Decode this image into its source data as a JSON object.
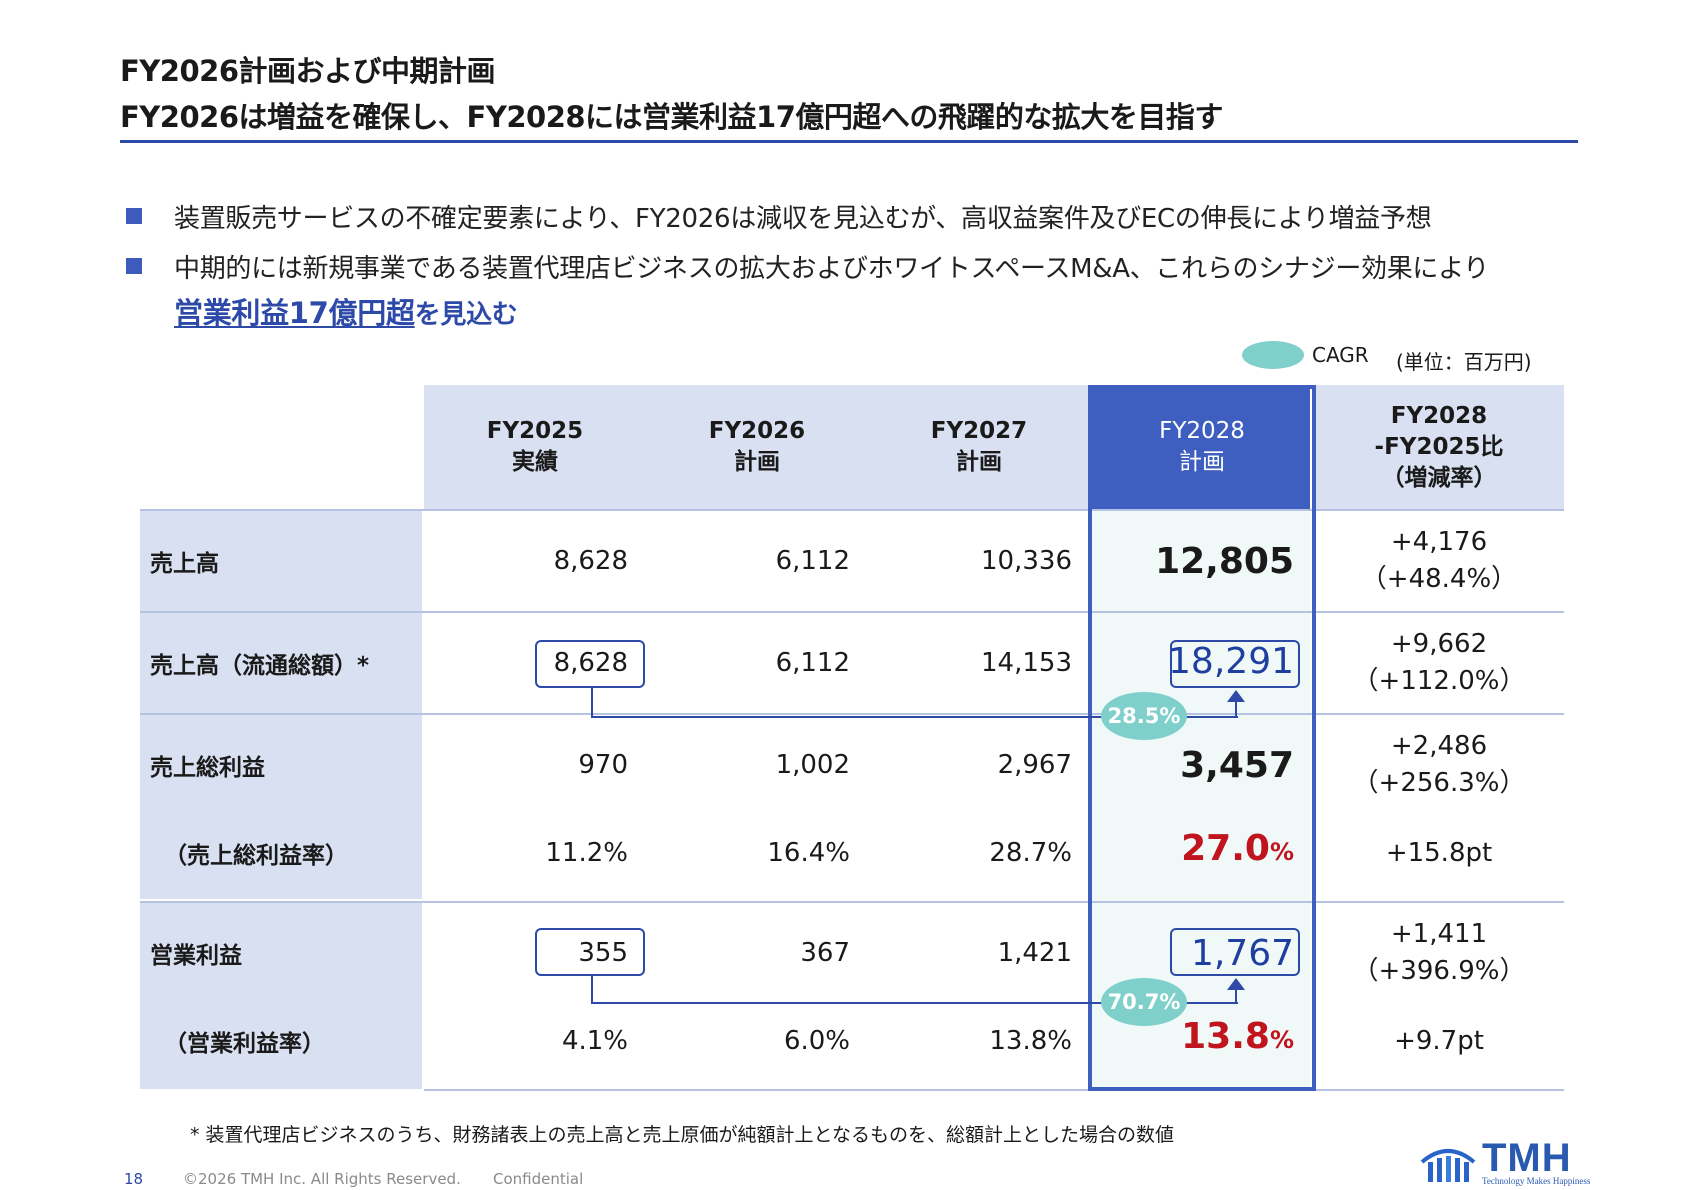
{
  "slide": {
    "title_line1": "FY2026計画および中期計画",
    "title_line2": "FY2026は増益を確保し、FY2028には営業利益17億円超への飛躍的な拡大を目指す"
  },
  "bullets": [
    {
      "text": "装置販売サービスの不確定要素により、FY2026は減収を見込むが、高収益案件及びECの伸長により増益予想"
    },
    {
      "text": "中期的には新規事業である装置代理店ビジネスの拡大およびホワイトスペースM&A、これらのシナジー効果により",
      "highlight": "営業利益17億円超",
      "tail": "を見込む"
    }
  ],
  "legend": {
    "cagr": "CAGR",
    "unit": "(単位：百万円)"
  },
  "table": {
    "headers": [
      {
        "line1": "FY2025",
        "line2": "実績"
      },
      {
        "line1": "FY2026",
        "line2": "計画"
      },
      {
        "line1": "FY2027",
        "line2": "計画"
      },
      {
        "line1": "FY2028",
        "line2": "計画"
      },
      {
        "line1": "FY2028",
        "line2": "-FY2025比",
        "line3": "（増減率）"
      }
    ],
    "rows": [
      {
        "label": "売上高",
        "values": [
          "8,628",
          "6,112",
          "10,336",
          "12,805"
        ],
        "delta1": "+4,176",
        "delta2": "（+48.4%）"
      },
      {
        "label": "売上高（流通総額）*",
        "values": [
          "8,628",
          "6,112",
          "14,153",
          "18,291"
        ],
        "delta1": "+9,662",
        "delta2": "（+112.0%）"
      },
      {
        "label": "売上総利益",
        "values": [
          "970",
          "1,002",
          "2,967",
          "3,457"
        ],
        "delta1": "+2,486",
        "delta2": "（+256.3%）"
      },
      {
        "label": "（売上総利益率）",
        "values": [
          "11.2%",
          "16.4%",
          "28.7%"
        ],
        "fy2028_num": "27.0",
        "fy2028_pct": "%",
        "delta1": "+15.8pt"
      },
      {
        "label": "営業利益",
        "values": [
          "355",
          "367",
          "1,421",
          "1,767"
        ],
        "delta1": "+1,411",
        "delta2": "（+396.9%）"
      },
      {
        "label": "（営業利益率）",
        "values": [
          "4.1%",
          "6.0%",
          "13.8%"
        ],
        "fy2028_num": "13.8",
        "fy2028_pct": "%",
        "delta1": "+9.7pt"
      }
    ],
    "cagr_values": [
      "28.5%",
      "70.7%"
    ]
  },
  "footnote": "* 装置代理店ビジネスのうち、財務諸表上の売上高と売上原価が純額計上となるものを、総額計上とした場合の数値",
  "footer": {
    "page": "18",
    "copyright": "©2026 TMH Inc. All Rights Reserved.",
    "confidential": "Confidential"
  },
  "logo": {
    "name": "TMH",
    "tagline": "Technology Makes Happiness"
  },
  "colors": {
    "accent": "#2d4aa8",
    "header_bg": "#d9e0f1",
    "highlight_col_bg": "#f1f8f8",
    "cagr": "#7fcfcb",
    "red": "#c0141e"
  }
}
